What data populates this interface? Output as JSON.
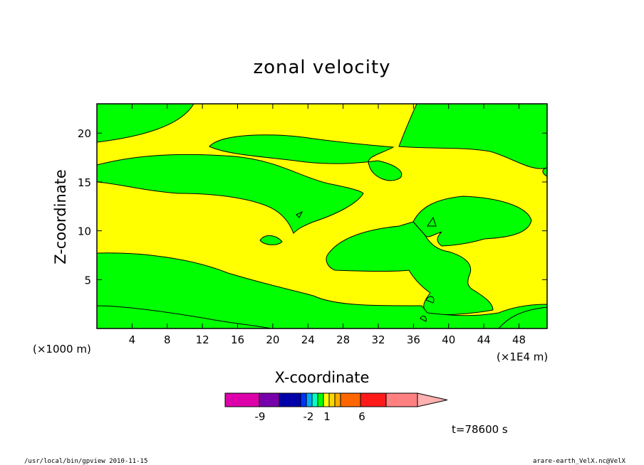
{
  "chart_data": {
    "type": "heatmap",
    "title": "zonal velocity",
    "xlabel": "X-coordinate",
    "ylabel": "Z-coordinate",
    "x_scale_note": "(×1E4 m)",
    "y_scale_note": "(×1000 m)",
    "xlim": [
      0,
      51.2
    ],
    "ylim": [
      0,
      23
    ],
    "x_ticks": [
      4,
      8,
      12,
      16,
      20,
      24,
      28,
      32,
      36,
      40,
      44,
      48
    ],
    "y_ticks": [
      5,
      10,
      15,
      20
    ],
    "time_label": "t=78600 s",
    "colorbar": {
      "colors": [
        "#dd00aa",
        "#7700aa",
        "#0000aa",
        "#0033ff",
        "#00aaff",
        "#00ffcc",
        "#00ff00",
        "#ffff00",
        "#ffd700",
        "#ffaa00",
        "#ff6600",
        "#ff1a1a",
        "#ff8080",
        "#ffb0b0"
      ],
      "tick_labels": [
        "-9",
        "-2",
        "1",
        "6"
      ]
    },
    "fill_colors": {
      "background": "#ffff00",
      "region": "#00ff00"
    }
  },
  "footer": {
    "left": "/usr/local/bin/gpview  2010-11-15",
    "right": "arare-earth_VelX.nc@VelX"
  }
}
